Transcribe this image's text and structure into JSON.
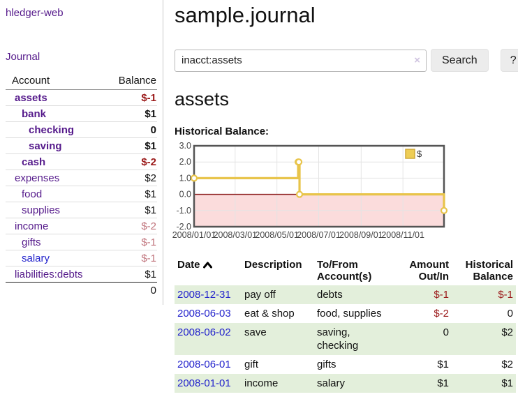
{
  "app": {
    "title": "hledger-web"
  },
  "sidebar": {
    "journal_label": "Journal",
    "accounts": {
      "headers": {
        "account": "Account",
        "balance": "Balance"
      },
      "rows": [
        {
          "account": "assets",
          "balance": "$-1",
          "level": 1,
          "bold": true,
          "negative": "strong"
        },
        {
          "account": "bank",
          "balance": "$1",
          "level": 2,
          "bold": true
        },
        {
          "account": "checking",
          "balance": "0",
          "level": 3,
          "bold": true
        },
        {
          "account": "saving",
          "balance": "$1",
          "level": 3,
          "bold": true
        },
        {
          "account": "cash",
          "balance": "$-2",
          "level": 2,
          "bold": true,
          "negative": "strong"
        },
        {
          "account": "expenses",
          "balance": "$2",
          "level": 1
        },
        {
          "account": "food",
          "balance": "$1",
          "level": 2
        },
        {
          "account": "supplies",
          "balance": "$1",
          "level": 2
        },
        {
          "account": "income",
          "balance": "$-2",
          "level": 1,
          "negative": "muted"
        },
        {
          "account": "gifts",
          "balance": "$-1",
          "level": 2,
          "negative": "muted"
        },
        {
          "account": "salary",
          "balance": "$-1",
          "level": 2,
          "negative": "muted",
          "blue": true
        },
        {
          "account": "liabilities:debts",
          "balance": "$1",
          "level": 1
        }
      ],
      "total": "0"
    }
  },
  "main": {
    "title": "sample.journal",
    "search": {
      "value": "inacct:assets",
      "clear_icon": "×",
      "button_label": "Search",
      "help_label": "?"
    },
    "account_heading": "assets",
    "chart_label": "Historical Balance:"
  },
  "chart_data": {
    "type": "line",
    "step": true,
    "title": "Historical Balance",
    "series": [
      {
        "name": "$",
        "color": "#e8c44a",
        "points": [
          {
            "date": "2008-01-01",
            "value": 1
          },
          {
            "date": "2008-06-01",
            "value": 2
          },
          {
            "date": "2008-06-02",
            "value": 2
          },
          {
            "date": "2008-06-03",
            "value": 0
          },
          {
            "date": "2008-12-31",
            "value": -1
          }
        ]
      }
    ],
    "x_ticks": [
      "2008/01/01",
      "2008/03/01",
      "2008/05/01",
      "2008/07/01",
      "2008/09/01",
      "2008/11/01"
    ],
    "y_ticks": [
      3.0,
      2.0,
      1.0,
      0.0,
      -1.0,
      -2.0
    ],
    "ylim": [
      -2,
      3
    ],
    "x_range": [
      "2008-01-01",
      "2008-12-31"
    ],
    "legend": {
      "label": "$",
      "position": "top-right"
    },
    "colors": {
      "grid": "#e4e4e4",
      "plot_border": "#545454",
      "zero_line": "#8b1b1b",
      "negative_fill": "#fbdcdc",
      "marker_fill": "#ffffff",
      "legend_fill": "#eecd55",
      "legend_border": "#cfa93a",
      "axis_text": "#444444"
    }
  },
  "register": {
    "headers": {
      "date": "Date",
      "sort_icon": "chevron-up",
      "description": "Description",
      "accounts": "To/From Account(s)",
      "amount": "Amount Out/In",
      "balance": "Historical Balance"
    },
    "rows": [
      {
        "date": "2008-12-31",
        "description": "pay off",
        "accounts": "debts",
        "amount": "$-1",
        "balance": "$-1",
        "amount_negative": true,
        "balance_negative": true
      },
      {
        "date": "2008-06-03",
        "description": "eat & shop",
        "accounts": "food, supplies",
        "amount": "$-2",
        "balance": "0",
        "amount_negative": true
      },
      {
        "date": "2008-06-02",
        "description": "save",
        "accounts": "saving, checking",
        "amount": "0",
        "balance": "$2"
      },
      {
        "date": "2008-06-01",
        "description": "gift",
        "accounts": "gifts",
        "amount": "$1",
        "balance": "$2"
      },
      {
        "date": "2008-01-01",
        "description": "income",
        "accounts": "salary",
        "amount": "$1",
        "balance": "$1"
      }
    ]
  }
}
